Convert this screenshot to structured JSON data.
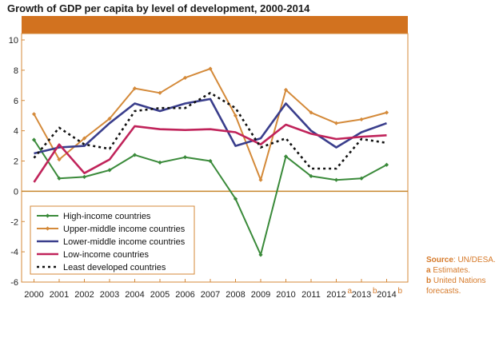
{
  "chart_data": {
    "type": "line",
    "title": "Growth of GDP per capita by level of development, 2000-2014",
    "x": [
      "2000",
      "2001",
      "2002",
      "2003",
      "2004",
      "2005",
      "2006",
      "2007",
      "2008",
      "2009",
      "2010",
      "2011",
      "2012",
      "2013",
      "2014"
    ],
    "x_marks": {
      "2012": "a",
      "2013": "b",
      "2014": "b"
    },
    "ylim": [
      -6,
      10
    ],
    "yticks": [
      -6,
      -4,
      -2,
      0,
      2,
      4,
      6,
      8,
      10
    ],
    "grid": false,
    "legend_position": "bottom-left",
    "series": [
      {
        "name": "High-income countries",
        "color": "#3a8a3a",
        "style": "solid-marker",
        "values": [
          3.4,
          0.85,
          0.95,
          1.4,
          2.4,
          1.9,
          2.25,
          2.0,
          -0.5,
          -4.2,
          2.3,
          1.0,
          0.75,
          0.85,
          1.75
        ]
      },
      {
        "name": "Upper-middle income countries",
        "color": "#d48a3a",
        "style": "solid-marker",
        "values": [
          5.1,
          2.1,
          3.5,
          4.8,
          6.8,
          6.5,
          7.5,
          8.1,
          5.0,
          0.75,
          6.7,
          5.2,
          4.5,
          4.75,
          5.2
        ]
      },
      {
        "name": "Lower-middle income countries",
        "color": "#3a3e8c",
        "style": "solid",
        "values": [
          2.5,
          2.9,
          3.0,
          4.5,
          5.8,
          5.3,
          5.8,
          6.1,
          3.0,
          3.5,
          5.8,
          4.0,
          2.9,
          3.9,
          4.5
        ]
      },
      {
        "name": "Low-income countries",
        "color": "#c0235a",
        "style": "solid",
        "values": [
          0.6,
          3.1,
          1.2,
          2.1,
          4.3,
          4.1,
          4.05,
          4.1,
          3.9,
          3.1,
          4.4,
          3.8,
          3.45,
          3.6,
          3.7
        ]
      },
      {
        "name": "Least developed countries",
        "color": "#111111",
        "style": "dotted",
        "values": [
          2.2,
          4.2,
          3.1,
          2.8,
          5.3,
          5.5,
          5.5,
          6.5,
          5.5,
          2.9,
          3.5,
          1.5,
          1.5,
          3.45,
          3.2
        ]
      }
    ]
  },
  "notes": {
    "source_label": "Source",
    "source_text": ": UN/DESA.",
    "a_label": "a",
    "a_text": "Estimates.",
    "b_label": "b",
    "b_text": "United Nations forecasts."
  },
  "colors": {
    "band": "#d2721f",
    "frame": "#d48a3a",
    "zero_line": "#c8862e"
  }
}
